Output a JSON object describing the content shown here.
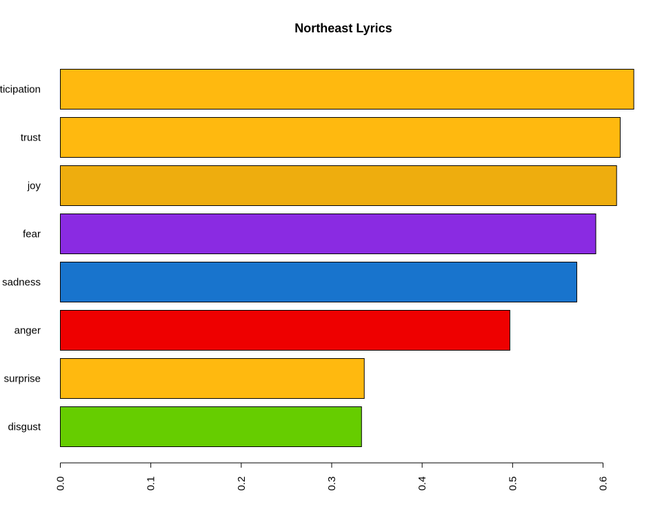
{
  "chart_data": {
    "type": "bar",
    "orientation": "horizontal",
    "title": "Northeast Lyrics",
    "xlabel": "",
    "ylabel": "",
    "categories": [
      "anticipation",
      "trust",
      "joy",
      "fear",
      "sadness",
      "anger",
      "surprise",
      "disgust"
    ],
    "values": [
      0.634,
      0.619,
      0.615,
      0.592,
      0.571,
      0.497,
      0.336,
      0.333
    ],
    "colors": [
      "#FFB90F",
      "#FFB90F",
      "#EEAD0E",
      "#8A2BE2",
      "#1874CD",
      "#EE0000",
      "#FFB90F",
      "#66CD00"
    ],
    "xlim": [
      0,
      0.6
    ],
    "x_ticks": [
      0.0,
      0.1,
      0.2,
      0.3,
      0.4,
      0.5,
      0.6
    ],
    "x_tick_labels": [
      "0.0",
      "0.1",
      "0.2",
      "0.3",
      "0.4",
      "0.5",
      "0.6"
    ],
    "tick_label_orientation": "vertical",
    "grid": false,
    "legend": "none"
  }
}
